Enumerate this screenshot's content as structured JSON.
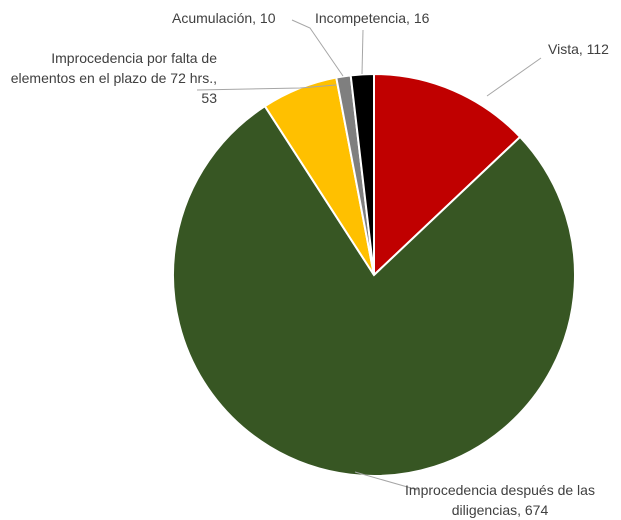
{
  "chart_data": {
    "type": "pie",
    "labels": [
      "Vista, 112",
      "Improcedencia después de las diligencias, 674",
      "Improcedencia por falta de elementos en el plazo de 72 hrs., 53",
      "Acumulación, 10",
      "Incompetencia, 16"
    ],
    "values": [
      112,
      674,
      53,
      10,
      16
    ],
    "colors": [
      "#c00000",
      "#375623",
      "#ffc000",
      "#7f7f7f",
      "#000000"
    ]
  }
}
